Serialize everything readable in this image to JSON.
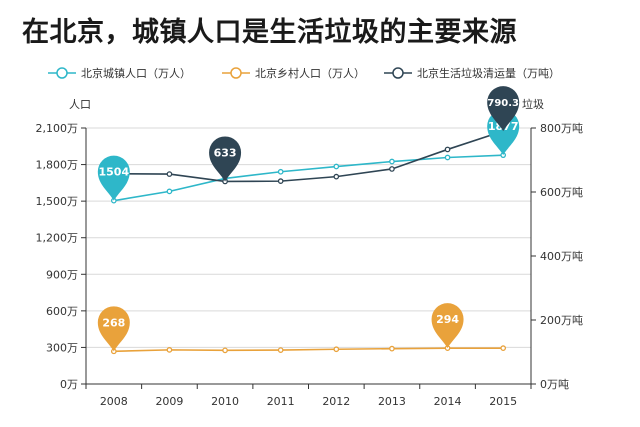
{
  "title": "在北京，城镇人口是生活垃圾的主要来源",
  "chart_data": {
    "type": "line",
    "title": "在北京，城镇人口是生活垃圾的主要来源",
    "categories": [
      "2008",
      "2009",
      "2010",
      "2011",
      "2012",
      "2013",
      "2014",
      "2015"
    ],
    "series": [
      {
        "name": "北京城镇人口（万人）",
        "axis": "left",
        "color": "#2eb7c9",
        "values": [
          1504,
          1580,
          1686,
          1741,
          1784,
          1825,
          1858,
          1877
        ],
        "labels": [
          {
            "index": 0,
            "text": "1504"
          },
          {
            "index": 7,
            "text": "1877"
          }
        ]
      },
      {
        "name": "北京乡村人口（万人）",
        "axis": "left",
        "color": "#e9a23b",
        "values": [
          268,
          280,
          276,
          278,
          285,
          290,
          294,
          294
        ],
        "labels": [
          {
            "index": 0,
            "text": "268"
          },
          {
            "index": 6,
            "text": "294"
          }
        ]
      },
      {
        "name": "北京生活垃圾清运量（万吨）",
        "axis": "right",
        "color": "#2f4554",
        "values": [
          657,
          656,
          633,
          634,
          648,
          672,
          733,
          790.3
        ],
        "labels": [
          {
            "index": 2,
            "text": "633"
          },
          {
            "index": 7,
            "text": "790.3"
          }
        ]
      }
    ],
    "y_left": {
      "name": "人口",
      "range": [
        0,
        2100
      ],
      "ticks": [
        "0万",
        "300万",
        "600万",
        "900万",
        "1,200万",
        "1,500万",
        "1,800万",
        "2,100万"
      ]
    },
    "y_right": {
      "name": "垃圾",
      "range": [
        0,
        800
      ],
      "ticks": [
        "0万吨",
        "200万吨",
        "400万吨",
        "600万吨",
        "800万吨"
      ]
    },
    "grid": true,
    "legend_position": "top"
  }
}
